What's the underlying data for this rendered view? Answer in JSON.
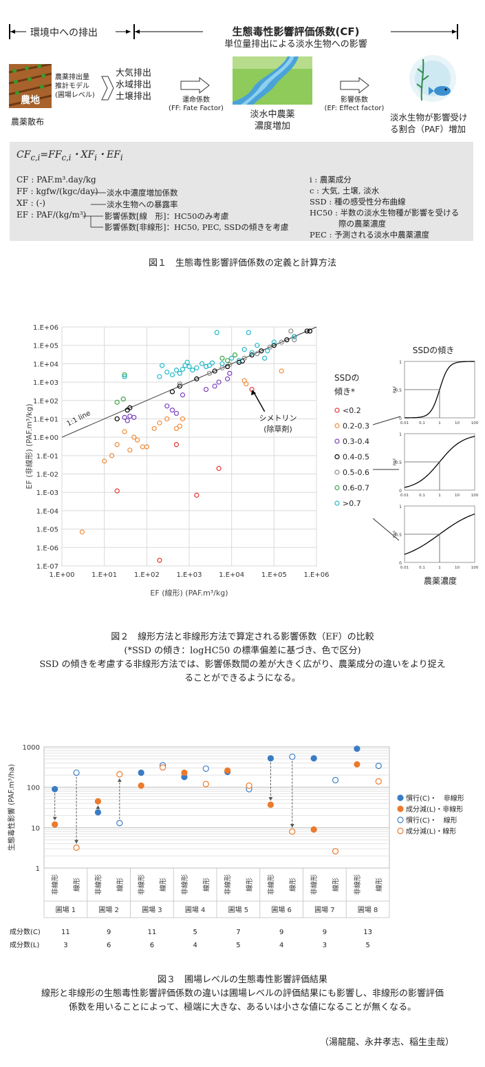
{
  "fig1": {
    "left_range": "環境中への排出",
    "title": "生態毒性影響評価係数(CF)",
    "subtitle": "単位量排出による淡水生物への影響",
    "field_label": "農地",
    "field_caption": "農薬散布",
    "model": [
      "農薬排出量",
      "推計モデル",
      "(圃場レベル)"
    ],
    "emissions": [
      "大気排出",
      "水域排出",
      "土壌排出"
    ],
    "fate": [
      "運命係数",
      "(FF: Fate Factor)"
    ],
    "fate_result": [
      "淡水中農薬",
      "濃度増加"
    ],
    "effect": [
      "影響係数",
      "(EF: Effect factor)"
    ],
    "effect_result": [
      "淡水生物が影響受け",
      "る割合（PAF）増加"
    ],
    "formula": {
      "main": "CFc,i=FFc,i・XFi・EFi",
      "cf": "CF : PAF.m³.day/kg",
      "ff": "FF : kgfw/(kgc/day)",
      "ff_desc": "淡水中濃度増加係数",
      "xf": "XF : (-)",
      "xf_desc": "淡水生物への暴露率",
      "ef": "EF : PAF/(kg/m³)",
      "ef_desc1": "影響係数[線　形]：HC50のみ考慮",
      "ef_desc2": "影響係数[非線形]：HC50, PEC, SSDの傾きを考慮",
      "defs": [
        "i : 農薬成分",
        "c : 大気, 土壌, 淡水",
        "SSD : 種の感受性分布曲線",
        "HC50 : 半数の淡水生物種が影響を受ける",
        "際の農薬濃度",
        "PEC : 予測される淡水中農薬濃度"
      ]
    },
    "caption": "図１　生態毒性影響評価係数の定義と計算方法"
  },
  "fig2": {
    "caption": [
      "図２　線形方法と非線形方法で算定される影響係数（EF）の比較",
      "(*SSD の傾き：logHC50 の標準偏差に基づき、色で区分)",
      "SSD の傾きを考慮する非線形方法では、影響係数間の差が大きく広がり、農薬成分の違いをより捉え",
      "ることができるようになる。"
    ]
  },
  "fig3": {
    "caption": [
      "図３　圃場レベルの生態毒性影響評価結果",
      "線形と非線形の生態毒性影響評価係数の違いは圃場レベルの評価結果にも影響し、非線形の影響評価",
      "係数を用いることによって、極端に大きな、あるいは小さな値になることが無くなる。"
    ]
  },
  "authors": "（湯龍龍、永井孝志、稲生圭哉）",
  "chart_data": [
    {
      "type": "scatter",
      "xlabel": "EF (線形) (PAF.m³/kg)",
      "ylabel": "EF (非線形) (PAF.m³/kg)",
      "xlog": true,
      "ylog": true,
      "xlim": [
        1,
        1000000
      ],
      "ylim": [
        1e-07,
        1000000
      ],
      "xticks": [
        "1.E+00",
        "1.E+01",
        "1.E+02",
        "1.E+03",
        "1.E+04",
        "1.E+05",
        "1.E+06"
      ],
      "yticks": [
        "1.E-07",
        "1.E-06",
        "1.E-05",
        "1.E-04",
        "1.E-03",
        "1.E-02",
        "1.E-01",
        "1.E+00",
        "1.E+01",
        "1.E+02",
        "1.E+03",
        "1.E+04",
        "1.E+05",
        "1.E+06"
      ],
      "line_label": "1:1 line",
      "annotation": [
        "シメトリン",
        "(除草剤)"
      ],
      "legend_title": [
        "SSDの",
        "傾き*"
      ],
      "series": [
        {
          "name": "<0.2",
          "color": "#e8332e",
          "points": [
            [
              20,
              0.0012
            ],
            [
              200,
              2e-07
            ],
            [
              500,
              0.4
            ],
            [
              1500,
              0.0007
            ],
            [
              5000,
              0.02
            ],
            [
              30000,
              400
            ]
          ]
        },
        {
          "name": "0.2-0.3",
          "color": "#ef8b3a",
          "points": [
            [
              3,
              7e-06
            ],
            [
              10,
              0.05
            ],
            [
              15,
              0.1
            ],
            [
              20,
              0.4
            ],
            [
              30,
              2
            ],
            [
              40,
              0.2
            ],
            [
              50,
              1
            ],
            [
              60,
              0.7
            ],
            [
              80,
              0.3
            ],
            [
              100,
              0.3
            ],
            [
              150,
              3
            ],
            [
              200,
              6
            ],
            [
              300,
              10
            ],
            [
              500,
              3
            ],
            [
              600,
              4
            ],
            [
              700,
              10
            ],
            [
              20000,
              1200
            ],
            [
              22000,
              800
            ],
            [
              150000,
              4000
            ]
          ]
        },
        {
          "name": "0.3-0.4",
          "color": "#7b3fbf",
          "points": [
            [
              30,
              12
            ],
            [
              35,
              8
            ],
            [
              40,
              14
            ],
            [
              50,
              12
            ],
            [
              300,
              50
            ],
            [
              400,
              30
            ],
            [
              500,
              20
            ],
            [
              700,
              200
            ],
            [
              2500,
              400
            ],
            [
              4000,
              600
            ],
            [
              5000,
              1000
            ],
            [
              8000,
              1500
            ],
            [
              9000,
              3000
            ]
          ]
        },
        {
          "name": "0.4-0.5",
          "color": "#000000",
          "points": [
            [
              20,
              10
            ],
            [
              35,
              30
            ],
            [
              40,
              40
            ],
            [
              400,
              300
            ],
            [
              600,
              600
            ],
            [
              1500,
              1500
            ],
            [
              4000,
              4000
            ],
            [
              8000,
              7000
            ],
            [
              15000,
              12000
            ],
            [
              18000,
              14000
            ],
            [
              30000,
              30000
            ],
            [
              50000,
              50000
            ],
            [
              100000,
              100000
            ],
            [
              200000,
              200000
            ],
            [
              300000,
              300000
            ],
            [
              600000,
              600000
            ],
            [
              700000,
              600000
            ]
          ]
        },
        {
          "name": "0.5-0.6",
          "color": "#888888",
          "points": [
            [
              600,
              800
            ],
            [
              3000,
              3000
            ],
            [
              6000,
              6000
            ],
            [
              9000,
              9000
            ],
            [
              20000,
              20000
            ],
            [
              40000,
              35000
            ],
            [
              80000,
              80000
            ],
            [
              150000,
              150000
            ],
            [
              250000,
              600000
            ],
            [
              300000,
              200000
            ]
          ]
        },
        {
          "name": "0.6-0.7",
          "color": "#3aa64a",
          "points": [
            [
              20,
              80
            ],
            [
              28,
              120
            ],
            [
              30,
              2500
            ],
            [
              6000,
              20000
            ],
            [
              8000,
              15000
            ],
            [
              12000,
              30000
            ]
          ]
        },
        {
          "name": ">0.7",
          "color": "#22b8c8",
          "points": [
            [
              30,
              2000
            ],
            [
              200,
              2000
            ],
            [
              230,
              8000
            ],
            [
              300,
              3500
            ],
            [
              400,
              2500
            ],
            [
              500,
              4500
            ],
            [
              600,
              3000
            ],
            [
              700,
              5000
            ],
            [
              800,
              8000
            ],
            [
              900,
              12000
            ],
            [
              1000,
              7000
            ],
            [
              1200,
              4500
            ],
            [
              1500,
              6000
            ],
            [
              2000,
              10000
            ],
            [
              2500,
              7000
            ],
            [
              3000,
              8000
            ],
            [
              3500,
              11000
            ],
            [
              4500,
              500000
            ],
            [
              6000,
              10000
            ],
            [
              10000,
              20000
            ],
            [
              15000,
              15000
            ],
            [
              20000,
              60000
            ],
            [
              25000,
              500000
            ],
            [
              30000,
              40000
            ],
            [
              40000,
              100000
            ],
            [
              60000,
              20000
            ],
            [
              70000,
              50000
            ],
            [
              100000,
              150000
            ],
            [
              300000,
              300000
            ]
          ]
        }
      ],
      "mini_title": "SSDの傾き",
      "mini_xlabel": "農薬濃度",
      "mini_ylabel": "PAF",
      "mini_yticks": [
        "0",
        "0.5",
        "1"
      ],
      "mini_xticks": [
        "0.01",
        "0.1",
        "1",
        "10",
        "100"
      ]
    },
    {
      "type": "scatter",
      "ylabel": "生態毒性影響 (PAF.m³/ha)",
      "ylog": true,
      "ylim": [
        1,
        1000
      ],
      "yticks": [
        "1",
        "10",
        "100",
        "1000"
      ],
      "sub_labels": [
        "非線形",
        "線形"
      ],
      "categories": [
        "圃場 1",
        "圃場 2",
        "圃場 3",
        "圃場 4",
        "圃場 5",
        "圃場 6",
        "圃場 7",
        "圃場 8"
      ],
      "series": [
        {
          "name": "慣行(C)・　非線形",
          "color": "#3a7cc4",
          "filled": true,
          "values": [
            90,
            24,
            230,
            180,
            240,
            520,
            520,
            900
          ]
        },
        {
          "name": "成分減(L)・非線形",
          "color": "#ea7a2c",
          "filled": true,
          "values": [
            12,
            45,
            110,
            230,
            260,
            37,
            9,
            370
          ]
        },
        {
          "name": "慣行(C)・　線形",
          "color": "#3a7cc4",
          "filled": false,
          "values": [
            230,
            13,
            350,
            290,
            90,
            570,
            150,
            340
          ]
        },
        {
          "name": "成分減(L)・線形",
          "color": "#ea7a2c",
          "filled": false,
          "values": [
            3.2,
            210,
            310,
            120,
            110,
            8,
            2.6,
            140
          ]
        }
      ],
      "counts_c_label": "成分数(C)",
      "counts_l_label": "成分数(L)",
      "counts_c": [
        "11",
        "9",
        "11",
        "5",
        "7",
        "9",
        "9",
        "13"
      ],
      "counts_l": [
        "3",
        "6",
        "6",
        "4",
        "5",
        "4",
        "3",
        "5"
      ]
    }
  ]
}
